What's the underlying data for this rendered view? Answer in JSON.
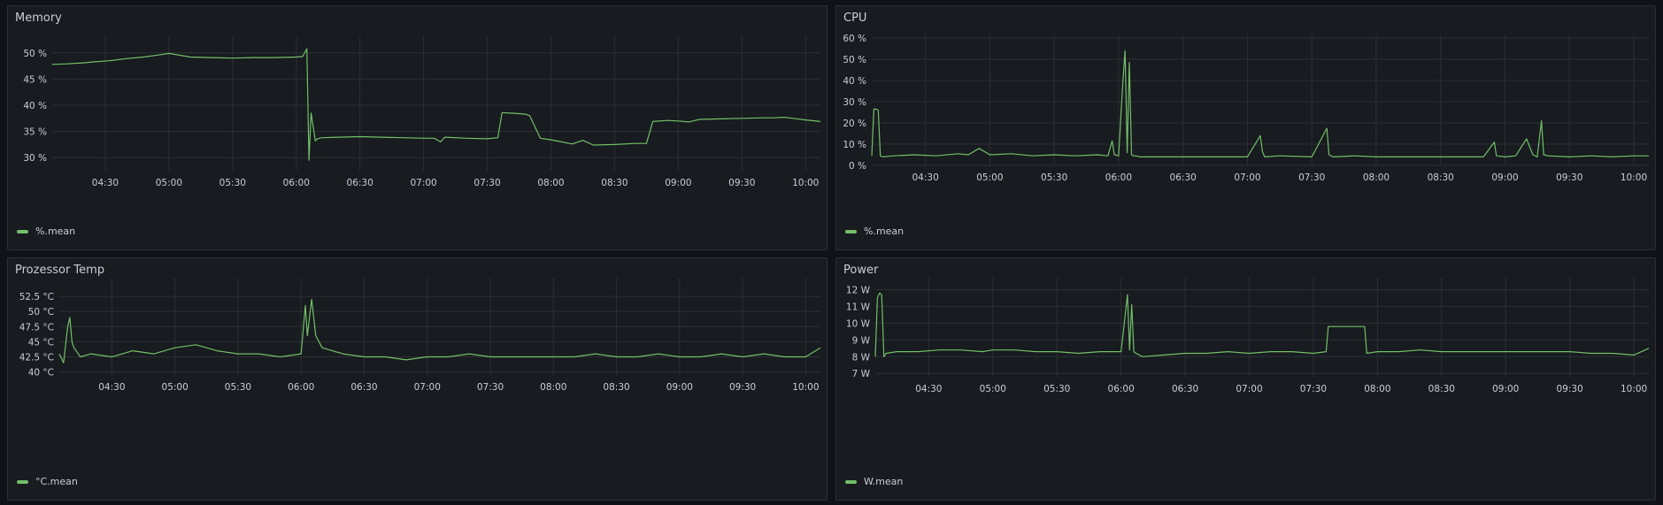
{
  "colors": {
    "background": "#111217",
    "panel": "#181b1f",
    "grid": "#2c3036",
    "series": "#73bf69"
  },
  "x_ticks": [
    "04:30",
    "05:00",
    "05:30",
    "06:00",
    "06:30",
    "07:00",
    "07:30",
    "08:00",
    "08:30",
    "09:00",
    "09:30",
    "10:00"
  ],
  "panels": [
    {
      "title": "Memory",
      "legend": "%.mean",
      "chart_data": {
        "type": "line",
        "title": "Memory",
        "xlabel": "",
        "ylabel": "",
        "x_range": [
          "04:05",
          "10:07"
        ],
        "y_range": [
          27.5,
          52.5
        ],
        "y_ticks": [
          30,
          35,
          40,
          45,
          50
        ],
        "y_tick_labels": [
          "30 %",
          "35 %",
          "40 %",
          "45 %",
          "50 %"
        ],
        "grid": true,
        "legend_position": "bottom-left",
        "series": [
          {
            "name": "%.mean",
            "x": [
              "04:05",
              "04:12",
              "04:20",
              "04:25",
              "04:32",
              "04:40",
              "04:48",
              "04:55",
              "05:00",
              "05:10",
              "05:20",
              "05:30",
              "05:40",
              "05:50",
              "06:00",
              "06:03",
              "06:05",
              "06:06",
              "06:07",
              "06:09",
              "06:10",
              "06:12",
              "06:20",
              "06:30",
              "06:40",
              "06:50",
              "07:00",
              "07:05",
              "07:08",
              "07:10",
              "07:20",
              "07:30",
              "07:35",
              "07:37",
              "07:45",
              "07:48",
              "07:50",
              "07:55",
              "08:00",
              "08:05",
              "08:10",
              "08:15",
              "08:20",
              "08:30",
              "08:40",
              "08:45",
              "08:48",
              "08:55",
              "09:00",
              "09:05",
              "09:10",
              "09:20",
              "09:30",
              "09:40",
              "09:45",
              "09:50",
              "10:00",
              "10:07"
            ],
            "y": [
              47.8,
              47.9,
              48.1,
              48.3,
              48.5,
              48.9,
              49.2,
              49.6,
              49.9,
              49.2,
              49.1,
              49.0,
              49.1,
              49.1,
              49.2,
              49.3,
              50.8,
              29.5,
              38.5,
              33.2,
              33.6,
              33.8,
              33.9,
              34.0,
              33.9,
              33.8,
              33.7,
              33.7,
              33.0,
              33.9,
              33.7,
              33.6,
              33.8,
              38.6,
              38.4,
              38.3,
              38.0,
              33.7,
              33.4,
              33.0,
              32.6,
              33.3,
              32.4,
              32.5,
              32.7,
              32.7,
              36.9,
              37.1,
              37.0,
              36.8,
              37.3,
              37.4,
              37.5,
              37.6,
              37.6,
              37.7,
              37.2,
              36.9
            ]
          }
        ]
      }
    },
    {
      "title": "CPU",
      "legend": "%.mean",
      "chart_data": {
        "type": "line",
        "title": "CPU",
        "xlabel": "",
        "ylabel": "",
        "x_range": [
          "04:05",
          "10:07"
        ],
        "y_range": [
          0,
          60
        ],
        "y_ticks": [
          0,
          10,
          20,
          30,
          40,
          50,
          60
        ],
        "y_tick_labels": [
          "0 %",
          "10 %",
          "20 %",
          "30 %",
          "40 %",
          "50 %",
          "60 %"
        ],
        "grid": true,
        "legend_position": "bottom-left",
        "series": [
          {
            "name": "%.mean",
            "x": [
              "04:05",
              "04:06",
              "04:07",
              "04:08",
              "04:09",
              "04:10",
              "04:15",
              "04:25",
              "04:35",
              "04:45",
              "04:50",
              "04:55",
              "05:00",
              "05:10",
              "05:20",
              "05:30",
              "05:40",
              "05:50",
              "05:55",
              "05:57",
              "05:58",
              "06:00",
              "06:02",
              "06:03",
              "06:04",
              "06:05",
              "06:06",
              "06:07",
              "06:08",
              "06:10",
              "06:20",
              "06:30",
              "06:40",
              "06:50",
              "07:00",
              "07:06",
              "07:07",
              "07:08",
              "07:15",
              "07:30",
              "07:37",
              "07:38",
              "07:40",
              "07:50",
              "08:00",
              "08:10",
              "08:20",
              "08:30",
              "08:40",
              "08:50",
              "08:55",
              "08:56",
              "09:00",
              "09:05",
              "09:10",
              "09:13",
              "09:15",
              "09:17",
              "09:18",
              "09:20",
              "09:30",
              "09:40",
              "09:50",
              "10:00",
              "10:07"
            ],
            "y": [
              4.5,
              26.5,
              26.5,
              26.0,
              4.5,
              4.0,
              4.5,
              5.0,
              4.5,
              5.5,
              5.0,
              8.0,
              5.0,
              5.5,
              4.5,
              5.0,
              4.5,
              5.0,
              4.5,
              11.5,
              5.0,
              4.5,
              40.0,
              54.0,
              6.0,
              48.5,
              5.0,
              4.5,
              4.5,
              4.0,
              4.0,
              4.0,
              4.0,
              4.0,
              4.0,
              14.0,
              6.5,
              4.0,
              4.5,
              4.0,
              17.5,
              5.0,
              4.0,
              4.5,
              4.0,
              4.0,
              4.0,
              4.0,
              4.0,
              4.0,
              11.0,
              4.5,
              4.0,
              4.5,
              12.5,
              5.0,
              4.0,
              21.0,
              5.0,
              4.5,
              4.0,
              4.5,
              4.0,
              4.5,
              4.5
            ]
          }
        ]
      }
    },
    {
      "title": "Prozessor Temp",
      "legend": "°C.mean",
      "chart_data": {
        "type": "line",
        "title": "Prozessor Temp",
        "xlabel": "",
        "ylabel": "",
        "x_range": [
          "04:05",
          "10:07"
        ],
        "y_range": [
          39.5,
          55
        ],
        "y_ticks": [
          40,
          42.5,
          45,
          47.5,
          50,
          52.5
        ],
        "y_tick_labels": [
          "40 °C",
          "42.5 °C",
          "45 °C",
          "47.5 °C",
          "50 °C",
          "52.5 °C"
        ],
        "grid": true,
        "legend_position": "bottom-left",
        "series": [
          {
            "name": "°C.mean",
            "x": [
              "04:05",
              "04:07",
              "04:09",
              "04:10",
              "04:11",
              "04:12",
              "04:15",
              "04:20",
              "04:30",
              "04:40",
              "04:50",
              "05:00",
              "05:10",
              "05:20",
              "05:30",
              "05:40",
              "05:50",
              "06:00",
              "06:02",
              "06:03",
              "06:05",
              "06:07",
              "06:10",
              "06:20",
              "06:30",
              "06:40",
              "06:50",
              "07:00",
              "07:10",
              "07:20",
              "07:30",
              "07:40",
              "07:50",
              "08:00",
              "08:10",
              "08:20",
              "08:30",
              "08:40",
              "08:50",
              "09:00",
              "09:10",
              "09:20",
              "09:30",
              "09:40",
              "09:50",
              "10:00",
              "10:07"
            ],
            "y": [
              43.0,
              41.5,
              47.5,
              49.0,
              45.0,
              44.0,
              42.5,
              43.0,
              42.5,
              43.5,
              43.0,
              44.0,
              44.5,
              43.5,
              43.0,
              43.0,
              42.5,
              43.0,
              51.0,
              46.0,
              52.0,
              46.0,
              44.0,
              43.0,
              42.5,
              42.5,
              42.0,
              42.5,
              42.5,
              43.0,
              42.5,
              42.5,
              42.5,
              42.5,
              42.5,
              43.0,
              42.5,
              42.5,
              43.0,
              42.5,
              42.5,
              43.0,
              42.5,
              43.0,
              42.5,
              42.5,
              44.0
            ]
          }
        ]
      }
    },
    {
      "title": "Power",
      "legend": "W.mean",
      "chart_data": {
        "type": "line",
        "title": "Power",
        "xlabel": "",
        "ylabel": "",
        "x_range": [
          "04:05",
          "10:07"
        ],
        "y_range": [
          6.8,
          12.5
        ],
        "y_ticks": [
          7,
          8,
          9,
          10,
          11,
          12
        ],
        "y_tick_labels": [
          "7 W",
          "8 W",
          "9 W",
          "10 W",
          "11 W",
          "12 W"
        ],
        "grid": true,
        "legend_position": "bottom-left",
        "series": [
          {
            "name": "W.mean",
            "x": [
              "04:05",
              "04:06",
              "04:07",
              "04:08",
              "04:09",
              "04:10",
              "04:15",
              "04:25",
              "04:35",
              "04:45",
              "04:55",
              "05:00",
              "05:10",
              "05:20",
              "05:30",
              "05:40",
              "05:50",
              "06:00",
              "06:03",
              "06:04",
              "06:05",
              "06:06",
              "06:07",
              "06:10",
              "06:20",
              "06:30",
              "06:40",
              "06:50",
              "07:00",
              "07:10",
              "07:20",
              "07:30",
              "07:36",
              "07:37",
              "07:54",
              "07:55",
              "08:00",
              "08:10",
              "08:20",
              "08:30",
              "08:40",
              "08:50",
              "09:00",
              "09:10",
              "09:20",
              "09:30",
              "09:40",
              "09:50",
              "10:00",
              "10:07"
            ],
            "y": [
              8.0,
              11.5,
              11.8,
              11.7,
              8.0,
              8.2,
              8.3,
              8.3,
              8.4,
              8.4,
              8.3,
              8.4,
              8.4,
              8.3,
              8.3,
              8.2,
              8.3,
              8.3,
              11.7,
              8.4,
              11.1,
              8.3,
              8.2,
              8.0,
              8.1,
              8.2,
              8.2,
              8.3,
              8.2,
              8.3,
              8.3,
              8.2,
              8.3,
              9.8,
              9.8,
              8.2,
              8.3,
              8.3,
              8.4,
              8.3,
              8.3,
              8.3,
              8.3,
              8.3,
              8.3,
              8.3,
              8.2,
              8.2,
              8.1,
              8.5
            ]
          }
        ]
      }
    }
  ]
}
